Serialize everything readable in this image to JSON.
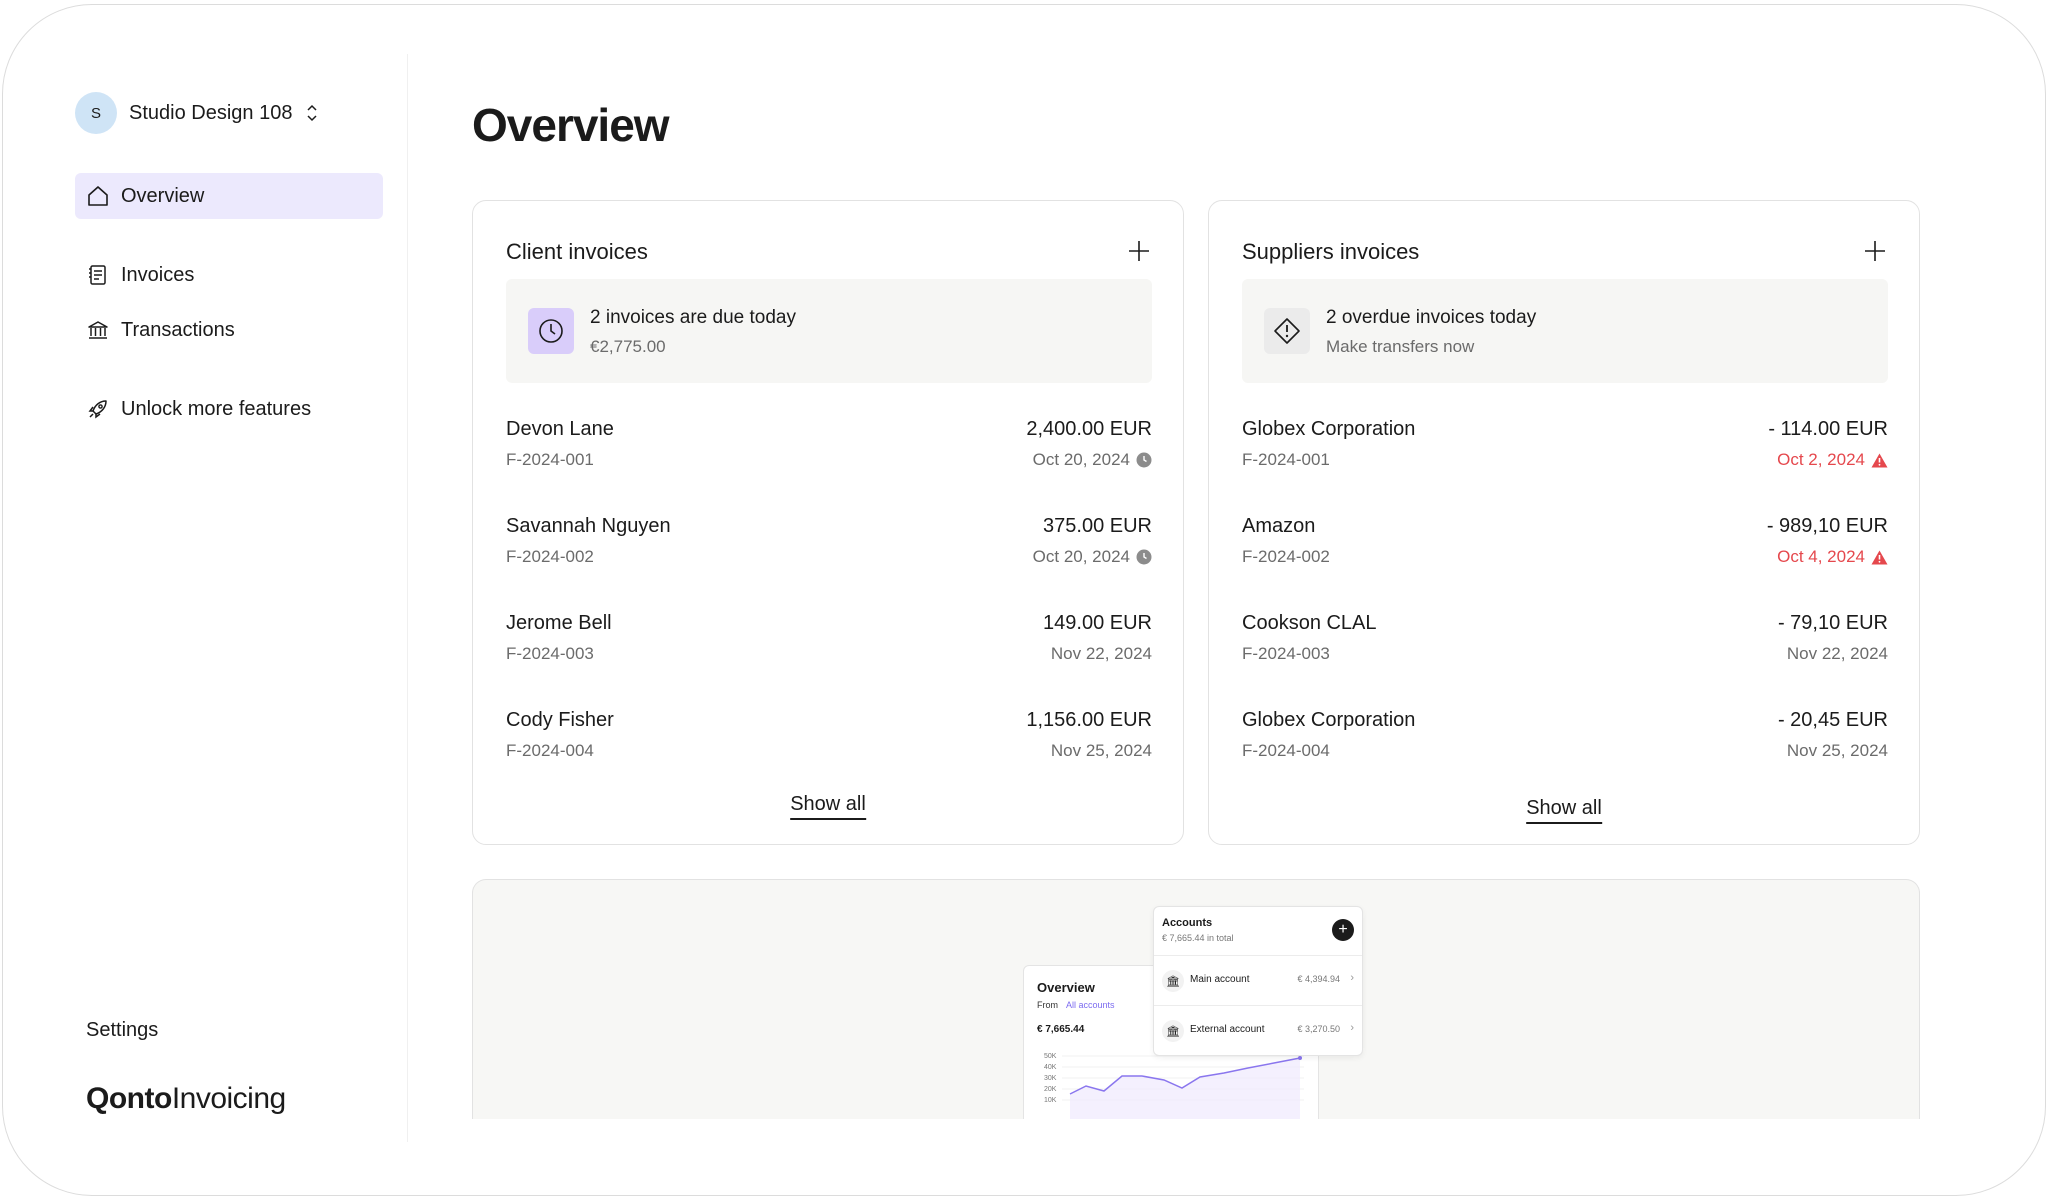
{
  "org": {
    "initial": "S",
    "name": "Studio Design 108"
  },
  "nav": {
    "overview": "Overview",
    "invoices": "Invoices",
    "transactions": "Transactions",
    "unlock": "Unlock more features",
    "settings": "Settings"
  },
  "brand": {
    "bold": "Qonto",
    "light": "Invoicing"
  },
  "page": {
    "title": "Overview"
  },
  "client": {
    "title": "Client invoices",
    "alert": {
      "title": "2 invoices are due today",
      "subtitle": "€2,775.00"
    },
    "rows": [
      {
        "name": "Devon Lane",
        "ref": "F-2024-001",
        "amount": "2,400.00 EUR",
        "date": "Oct 20, 2024",
        "status": "due"
      },
      {
        "name": "Savannah Nguyen",
        "ref": "F-2024-002",
        "amount": "375.00 EUR",
        "date": "Oct 20, 2024",
        "status": "due"
      },
      {
        "name": "Jerome Bell",
        "ref": "F-2024-003",
        "amount": "149.00 EUR",
        "date": "Nov 22, 2024",
        "status": "normal"
      },
      {
        "name": "Cody Fisher",
        "ref": "F-2024-004",
        "amount": "1,156.00 EUR",
        "date": "Nov 25, 2024",
        "status": "normal"
      }
    ],
    "show_all": "Show all"
  },
  "suppliers": {
    "title": "Suppliers invoices",
    "alert": {
      "title": "2 overdue invoices today",
      "subtitle": "Make transfers now"
    },
    "rows": [
      {
        "name": "Globex Corporation",
        "ref": "F-2024-001",
        "amount": "- 114.00 EUR",
        "date": "Oct 2, 2024",
        "status": "overdue"
      },
      {
        "name": "Amazon",
        "ref": "F-2024-002",
        "amount": "- 989,10 EUR",
        "date": "Oct 4, 2024",
        "status": "overdue"
      },
      {
        "name": "Cookson CLAL",
        "ref": "F-2024-003",
        "amount": "- 79,10 EUR",
        "date": "Nov 22, 2024",
        "status": "normal"
      },
      {
        "name": "Globex Corporation",
        "ref": "F-2024-004",
        "amount": "- 20,45 EUR",
        "date": "Nov 25, 2024",
        "status": "normal"
      }
    ],
    "show_all": "Show all"
  },
  "promo": {
    "overview_title": "Overview",
    "from_label": "From",
    "accounts_filter": "All accounts",
    "total": "€ 7,665.44",
    "y_ticks": [
      "50K",
      "40K",
      "30K",
      "20K",
      "10K"
    ],
    "accounts_title": "Accounts",
    "accounts_total": "€ 7,665.44 in total",
    "accounts": [
      {
        "label": "Main account",
        "amount": "€ 4,394.94"
      },
      {
        "label": "External account",
        "amount": "€ 3,270.50"
      }
    ]
  },
  "colors": {
    "accent": "#ece9fd",
    "alert_purple": "#d9cdfa",
    "overdue": "#e5484d",
    "muted": "#6b6b6b"
  },
  "icons": [
    "home-icon",
    "invoice-icon",
    "bank-icon",
    "rocket-icon",
    "clock-icon",
    "warning-diamond-icon",
    "plus-icon",
    "chevron-updown-icon"
  ]
}
